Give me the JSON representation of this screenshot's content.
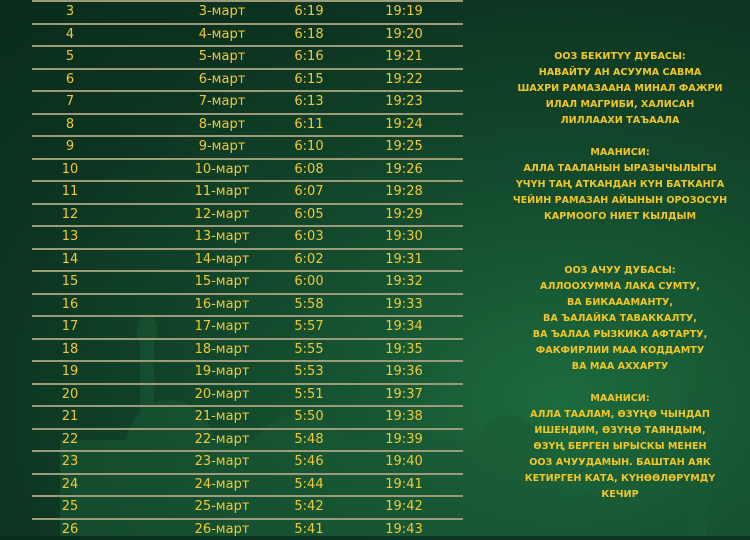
{
  "table": {
    "rows": [
      [
        "3",
        "3-март",
        "6:19",
        "19:19"
      ],
      [
        "4",
        "4-март",
        "6:18",
        "19:20"
      ],
      [
        "5",
        "5-март",
        "6:16",
        "19:21"
      ],
      [
        "6",
        "6-март",
        "6:15",
        "19:22"
      ],
      [
        "7",
        "7-март",
        "6:13",
        "19:23"
      ],
      [
        "8",
        "8-март",
        "6:11",
        "19:24"
      ],
      [
        "9",
        "9-март",
        "6:10",
        "19:25"
      ],
      [
        "10",
        "10-март",
        "6:08",
        "19:26"
      ],
      [
        "11",
        "11-март",
        "6:07",
        "19:28"
      ],
      [
        "12",
        "12-март",
        "6:05",
        "19:29"
      ],
      [
        "13",
        "13-март",
        "6:03",
        "19:30"
      ],
      [
        "14",
        "14-март",
        "6:02",
        "19:31"
      ],
      [
        "15",
        "15-март",
        "6:00",
        "19:32"
      ],
      [
        "16",
        "16-март",
        "5:58",
        "19:33"
      ],
      [
        "17",
        "17-март",
        "5:57",
        "19:34"
      ],
      [
        "18",
        "18-март",
        "5:55",
        "19:35"
      ],
      [
        "19",
        "19-март",
        "5:53",
        "19:36"
      ],
      [
        "20",
        "20-март",
        "5:51",
        "19:37"
      ],
      [
        "21",
        "21-март",
        "5:50",
        "19:38"
      ],
      [
        "22",
        "22-март",
        "5:48",
        "19:39"
      ],
      [
        "23",
        "23-март",
        "5:46",
        "19:40"
      ],
      [
        "24",
        "24-март",
        "5:44",
        "19:41"
      ],
      [
        "25",
        "25-март",
        "5:42",
        "19:42"
      ],
      [
        "26",
        "26-март",
        "5:41",
        "19:43"
      ]
    ]
  },
  "dua_closing": {
    "lines": [
      "ООЗ БЕКИТҮҮ ДУБАСЫ:",
      "НАВАЙТУ АН АСУУМА САВМА",
      "ШАХРИ РАМАЗААНА МИНАЛ ФАЖРИ",
      "ИЛАЛ МАГРИБИ, ХАЛИСАН",
      "ЛИЛЛААХИ ТАЪААЛА",
      "",
      "МААНИСИ:",
      "АЛЛА ТААЛАНЫН ЫРАЗЫЧЫЛЫГЫ",
      "ҮЧҮН ТАҢ АТКАНДАН КҮН БАТКАНГА",
      "ЧЕЙИН РАМАЗАН АЙЫНЫН ОРОЗОСУН",
      "КАРМООГО НИЕТ КЫЛДЫМ"
    ]
  },
  "dua_opening": {
    "lines": [
      "ООЗ АЧУУ ДУБАСЫ:",
      "АЛЛООХУММА ЛАКА СУМТУ,",
      "ВА БИКАААМАНТУ,",
      "ВА ЪАЛАЙКА ТАВАККАЛТУ,",
      "ВА ЪАЛАА РЫЗКИКА АФТАРТУ,",
      "ФАКФИРЛИИ МАА КОДДАМТУ",
      "ВА МАА АХХАРТУ",
      "",
      "МААНИСИ:",
      "АЛЛА ТААЛАМ, ӨЗҮҢӨ ЧЫНДАП",
      "ИШЕНДИМ, ӨЗҮҢӨ ТАЯНДЫМ,",
      "ӨЗҮҢ БЕРГЕН ЫРЫСКЫ МЕНЕН",
      "ООЗ АЧУУДАМЫН. БАШТАН АЯК",
      "КЕТИРГЕН КАТА, КҮНӨӨЛӨРҮМДҮ",
      "КЕЧИР"
    ]
  },
  "colors": {
    "text": "#f0c93a",
    "background": "#0c3320",
    "rule": "#9d9a7a"
  }
}
